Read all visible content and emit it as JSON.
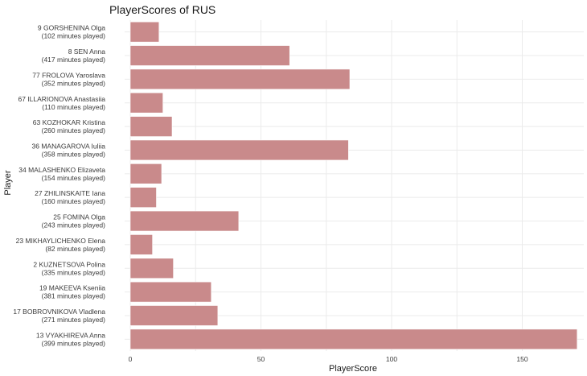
{
  "chart_data": {
    "type": "bar",
    "orientation": "horizontal",
    "title": "PlayerScores of RUS",
    "xlabel": "PlayerScore",
    "ylabel": "Player",
    "xlim": [
      0,
      175
    ],
    "xticks": [
      0,
      50,
      100,
      150
    ],
    "grid": true,
    "bar_color": "#c98a8b",
    "categories": [
      {
        "name": "9 GORSHENINA Olga",
        "minutes": "(102 minutes played)"
      },
      {
        "name": "8 SEN Anna",
        "minutes": "(417 minutes played)"
      },
      {
        "name": "77 FROLOVA Yaroslava",
        "minutes": "(352 minutes played)"
      },
      {
        "name": "67 ILLARIONOVA Anastasiia",
        "minutes": "(110 minutes played)"
      },
      {
        "name": "63 KOZHOKAR Kristina",
        "minutes": "(260 minutes played)"
      },
      {
        "name": "36 MANAGAROVA Iuliia",
        "minutes": "(358 minutes played)"
      },
      {
        "name": "34 MALASHENKO Elizaveta",
        "minutes": "(154 minutes played)"
      },
      {
        "name": "27 ZHILINSKAITE Iana",
        "minutes": "(160 minutes played)"
      },
      {
        "name": "25 FOMINA Olga",
        "minutes": "(243 minutes played)"
      },
      {
        "name": "23 MIKHAYLICHENKO Elena",
        "minutes": "(82 minutes played)"
      },
      {
        "name": "2 KUZNETSOVA Polina",
        "minutes": "(335 minutes played)"
      },
      {
        "name": "19 MAKEEVA Kseniia",
        "minutes": "(381 minutes played)"
      },
      {
        "name": "17 BOBROVNIKOVA Vladlena",
        "minutes": "(271 minutes played)"
      },
      {
        "name": "13 VYAKHIREVA Anna",
        "minutes": "(399 minutes played)"
      }
    ],
    "values": [
      11,
      61,
      84,
      12.5,
      16,
      83.5,
      12,
      10,
      41.5,
      8.5,
      16.5,
      31,
      33.5,
      171
    ]
  }
}
